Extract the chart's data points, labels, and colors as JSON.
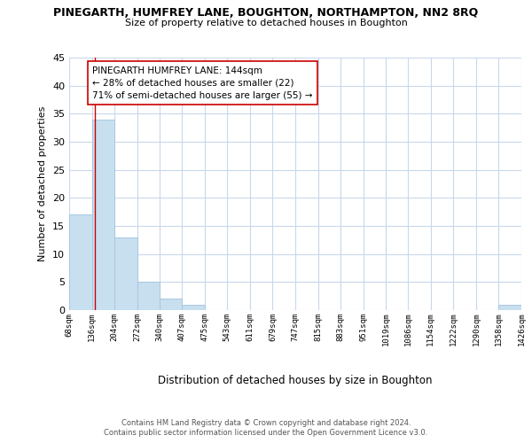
{
  "title": "PINEGARTH, HUMFREY LANE, BOUGHTON, NORTHAMPTON, NN2 8RQ",
  "subtitle": "Size of property relative to detached houses in Boughton",
  "xlabel": "Distribution of detached houses by size in Boughton",
  "ylabel": "Number of detached properties",
  "bar_color": "#c8dff0",
  "bar_edge_color": "#a8c8e0",
  "bins": [
    68,
    136,
    204,
    272,
    340,
    407,
    475,
    543,
    611,
    679,
    747,
    815,
    883,
    951,
    1019,
    1086,
    1154,
    1222,
    1290,
    1358,
    1426
  ],
  "bin_labels": [
    "68sqm",
    "136sqm",
    "204sqm",
    "272sqm",
    "340sqm",
    "407sqm",
    "475sqm",
    "543sqm",
    "611sqm",
    "679sqm",
    "747sqm",
    "815sqm",
    "883sqm",
    "951sqm",
    "1019sqm",
    "1086sqm",
    "1154sqm",
    "1222sqm",
    "1290sqm",
    "1358sqm",
    "1426sqm"
  ],
  "values": [
    17,
    34,
    13,
    5,
    2,
    1,
    0,
    0,
    0,
    0,
    0,
    0,
    0,
    0,
    0,
    0,
    0,
    0,
    0,
    1
  ],
  "property_size": 144,
  "vline_color": "#cc0000",
  "annotation_title": "PINEGARTH HUMFREY LANE: 144sqm",
  "annotation_line1": "← 28% of detached houses are smaller (22)",
  "annotation_line2": "71% of semi-detached houses are larger (55) →",
  "ylim": [
    0,
    45
  ],
  "yticks": [
    0,
    5,
    10,
    15,
    20,
    25,
    30,
    35,
    40,
    45
  ],
  "footer_line1": "Contains HM Land Registry data © Crown copyright and database right 2024.",
  "footer_line2": "Contains public sector information licensed under the Open Government Licence v3.0.",
  "background_color": "#ffffff",
  "grid_color": "#c8d8ec"
}
